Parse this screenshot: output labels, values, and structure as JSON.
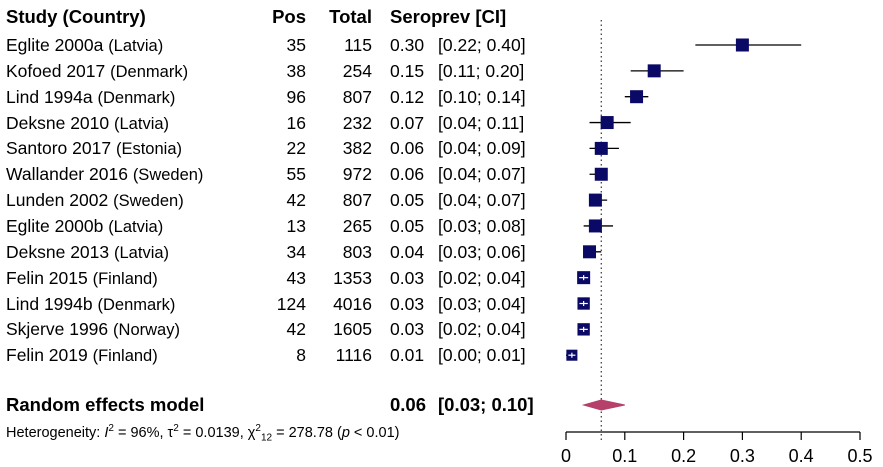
{
  "header": {
    "study": "Study (Country)",
    "pos": "Pos",
    "total": "Total",
    "est": "Seroprev [CI]"
  },
  "summary": {
    "label": "Random effects model",
    "est": "0.06",
    "ci": "[0.03; 0.10]",
    "value": 0.06,
    "lower": 0.03,
    "upper": 0.1
  },
  "heterogeneity": {
    "prefix": "Heterogeneity: ",
    "i2_symbol": "I",
    "i2_value": " = 96%, ",
    "tau_symbol": "τ",
    "tau_value": " = 0.0139, ",
    "chi_symbol": "χ",
    "chi_sub": "12",
    "chi_value": " = 278.78 (",
    "p_symbol": "p",
    "p_value": " < 0.01)"
  },
  "colors": {
    "box": "#0a0a66",
    "diamond": "#b5406a",
    "line": "#000000"
  },
  "chart_data": {
    "type": "forest",
    "xlim": [
      0,
      0.5
    ],
    "ticks": [
      "0",
      "0.1",
      "0.2",
      "0.3",
      "0.4",
      "0.5"
    ],
    "tick_values": [
      0,
      0.1,
      0.2,
      0.3,
      0.4,
      0.5
    ],
    "reference_line": 0.06,
    "studies": [
      {
        "study": "Eglite 2000a",
        "country": "(Latvia)",
        "pos": "35",
        "total": "115",
        "est": "0.30",
        "ci": "[0.22; 0.40]",
        "value": 0.3,
        "lower": 0.22,
        "upper": 0.4,
        "weight": 1.0
      },
      {
        "study": "Kofoed 2017",
        "country": "(Denmark)",
        "pos": "38",
        "total": "254",
        "est": "0.15",
        "ci": "[0.11; 0.20]",
        "value": 0.15,
        "lower": 0.11,
        "upper": 0.2,
        "weight": 1.0
      },
      {
        "study": "Lind 1994a",
        "country": "(Denmark)",
        "pos": "96",
        "total": "807",
        "est": "0.12",
        "ci": "[0.10; 0.14]",
        "value": 0.12,
        "lower": 0.1,
        "upper": 0.14,
        "weight": 1.0
      },
      {
        "study": "Deksne 2010",
        "country": "(Latvia)",
        "pos": "16",
        "total": "232",
        "est": "0.07",
        "ci": "[0.04; 0.11]",
        "value": 0.07,
        "lower": 0.04,
        "upper": 0.11,
        "weight": 1.0
      },
      {
        "study": "Santoro 2017",
        "country": "(Estonia)",
        "pos": "22",
        "total": "382",
        "est": "0.06",
        "ci": "[0.04; 0.09]",
        "value": 0.06,
        "lower": 0.04,
        "upper": 0.09,
        "weight": 1.0
      },
      {
        "study": "Wallander 2016",
        "country": "(Sweden)",
        "pos": "55",
        "total": "972",
        "est": "0.06",
        "ci": "[0.04; 0.07]",
        "value": 0.06,
        "lower": 0.04,
        "upper": 0.07,
        "weight": 1.0
      },
      {
        "study": "Lunden 2002",
        "country": "(Sweden)",
        "pos": "42",
        "total": "807",
        "est": "0.05",
        "ci": "[0.04; 0.07]",
        "value": 0.05,
        "lower": 0.04,
        "upper": 0.07,
        "weight": 1.0
      },
      {
        "study": "Eglite 2000b",
        "country": "(Latvia)",
        "pos": "13",
        "total": "265",
        "est": "0.05",
        "ci": "[0.03; 0.08]",
        "value": 0.05,
        "lower": 0.03,
        "upper": 0.08,
        "weight": 1.0
      },
      {
        "study": "Deksne 2013",
        "country": "(Latvia)",
        "pos": "34",
        "total": "803",
        "est": "0.04",
        "ci": "[0.03; 0.06]",
        "value": 0.04,
        "lower": 0.03,
        "upper": 0.06,
        "weight": 1.0
      },
      {
        "study": "Felin 2015",
        "country": "(Finland)",
        "pos": "43",
        "total": "1353",
        "est": "0.03",
        "ci": "[0.02; 0.04]",
        "value": 0.03,
        "lower": 0.02,
        "upper": 0.04,
        "weight": 1.0
      },
      {
        "study": "Lind 1994b",
        "country": "(Denmark)",
        "pos": "124",
        "total": "4016",
        "est": "0.03",
        "ci": "[0.03; 0.04]",
        "value": 0.03,
        "lower": 0.03,
        "upper": 0.04,
        "weight": 0.95
      },
      {
        "study": "Skjerve 1996",
        "country": "(Norway)",
        "pos": "42",
        "total": "1605",
        "est": "0.03",
        "ci": "[0.02; 0.04]",
        "value": 0.03,
        "lower": 0.02,
        "upper": 0.04,
        "weight": 0.95
      },
      {
        "study": "Felin 2019",
        "country": "(Finland)",
        "pos": "8",
        "total": "1116",
        "est": "0.01",
        "ci": "[0.00; 0.01]",
        "value": 0.01,
        "lower": 0.0,
        "upper": 0.01,
        "weight": 0.85
      }
    ]
  }
}
